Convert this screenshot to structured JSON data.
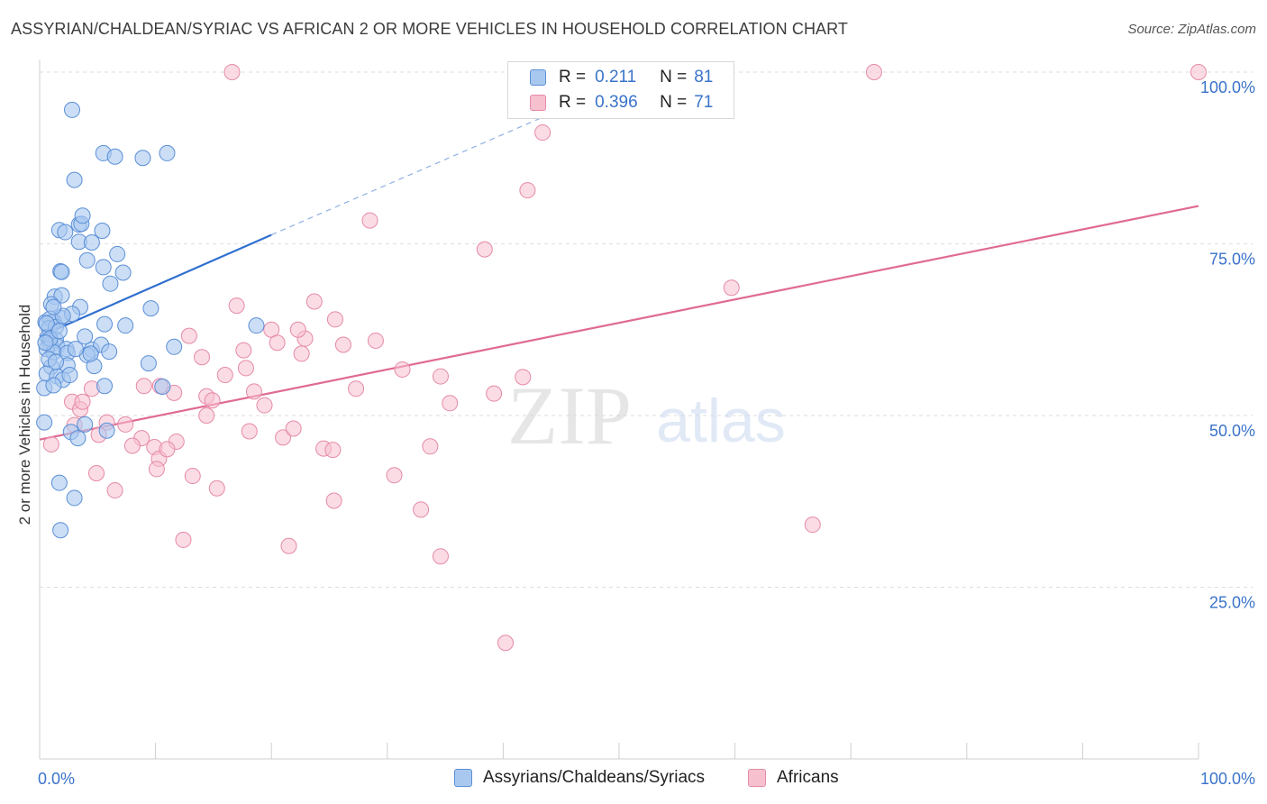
{
  "title": "ASSYRIAN/CHALDEAN/SYRIAC VS AFRICAN 2 OR MORE VEHICLES IN HOUSEHOLD CORRELATION CHART",
  "source": "Source: ZipAtlas.com",
  "watermark": {
    "zip": "ZIP",
    "atlas": "atlas"
  },
  "legend": {
    "r_label": "R =",
    "n_label": "N =",
    "series": [
      {
        "r": "0.211",
        "n": "81"
      },
      {
        "r": "0.396",
        "n": "71"
      }
    ]
  },
  "bottom_legend": [
    "Assyrians/Chaldeans/Syriacs",
    "Africans"
  ],
  "colors": {
    "blue_fill": "#a9c8f0",
    "blue_stroke": "#5b8fd6",
    "blue_line": "#2f6fcf",
    "pink_fill": "#f7c0cf",
    "pink_stroke": "#e58aa6",
    "pink_line": "#e06a93",
    "tick_label": "#3a73c9",
    "grid": "#dedede"
  },
  "chart_data": {
    "type": "scatter",
    "title": "ASSYRIAN/CHALDEAN/SYRIAC VS AFRICAN 2 OR MORE VEHICLES IN HOUSEHOLD CORRELATION CHART",
    "xlabel": "",
    "ylabel": "2 or more Vehicles in Household",
    "xlim": [
      0,
      100
    ],
    "ylim": [
      0,
      100
    ],
    "x_tick_labels": [
      "0.0%",
      "100.0%"
    ],
    "y_ticks": [
      25,
      50,
      75,
      100
    ],
    "y_tick_labels": [
      "25.0%",
      "50.0%",
      "75.0%",
      "100.0%"
    ],
    "series": [
      {
        "name": "Assyrians/Chaldeans/Syriacs",
        "color": "#5b8fd6",
        "points": [
          [
            2.8,
            94.5
          ],
          [
            3.0,
            84.3
          ],
          [
            5.5,
            88.2
          ],
          [
            6.5,
            87.7
          ],
          [
            8.9,
            87.5
          ],
          [
            11.0,
            88.2
          ],
          [
            1.7,
            77.0
          ],
          [
            2.2,
            76.7
          ],
          [
            3.4,
            77.8
          ],
          [
            3.6,
            77.9
          ],
          [
            3.7,
            79.1
          ],
          [
            5.4,
            76.9
          ],
          [
            3.4,
            75.3
          ],
          [
            4.5,
            75.2
          ],
          [
            4.1,
            72.6
          ],
          [
            6.7,
            73.5
          ],
          [
            5.5,
            71.6
          ],
          [
            7.2,
            70.8
          ],
          [
            1.8,
            71.0
          ],
          [
            1.9,
            70.9
          ],
          [
            6.1,
            69.2
          ],
          [
            1.3,
            67.3
          ],
          [
            1.9,
            67.5
          ],
          [
            1.0,
            66.2
          ],
          [
            3.5,
            65.8
          ],
          [
            1.8,
            64.2
          ],
          [
            1.2,
            63.7
          ],
          [
            0.5,
            63.6
          ],
          [
            0.9,
            64.1
          ],
          [
            2.8,
            64.8
          ],
          [
            9.6,
            65.6
          ],
          [
            0.8,
            62.7
          ],
          [
            1.4,
            62.9
          ],
          [
            5.6,
            63.3
          ],
          [
            7.4,
            63.1
          ],
          [
            18.7,
            63.1
          ],
          [
            0.7,
            61.4
          ],
          [
            0.9,
            60.9
          ],
          [
            1.4,
            61.0
          ],
          [
            0.9,
            60.3
          ],
          [
            1.5,
            60.1
          ],
          [
            2.3,
            59.7
          ],
          [
            4.5,
            59.6
          ],
          [
            5.3,
            60.3
          ],
          [
            11.6,
            60.0
          ],
          [
            0.6,
            59.7
          ],
          [
            1.2,
            59.2
          ],
          [
            2.4,
            59.1
          ],
          [
            4.1,
            58.8
          ],
          [
            6.0,
            59.3
          ],
          [
            1.0,
            57.1
          ],
          [
            2.4,
            57.3
          ],
          [
            4.7,
            57.2
          ],
          [
            9.4,
            57.6
          ],
          [
            0.6,
            56.1
          ],
          [
            1.5,
            55.7
          ],
          [
            2.0,
            55.2
          ],
          [
            0.4,
            54.0
          ],
          [
            1.2,
            54.4
          ],
          [
            5.6,
            54.3
          ],
          [
            10.6,
            54.2
          ],
          [
            0.4,
            49.0
          ],
          [
            3.9,
            48.7
          ],
          [
            2.7,
            47.6
          ],
          [
            3.3,
            46.7
          ],
          [
            5.8,
            47.8
          ],
          [
            1.7,
            40.2
          ],
          [
            3.0,
            38.0
          ],
          [
            1.8,
            33.3
          ],
          [
            0.9,
            61.2
          ],
          [
            2.0,
            64.5
          ],
          [
            1.2,
            65.8
          ],
          [
            3.1,
            59.7
          ],
          [
            0.6,
            63.4
          ],
          [
            1.7,
            62.3
          ],
          [
            4.4,
            59.0
          ],
          [
            0.8,
            58.2
          ],
          [
            2.6,
            55.9
          ],
          [
            1.4,
            57.8
          ],
          [
            3.9,
            61.5
          ],
          [
            0.5,
            60.6
          ]
        ],
        "trend_solid": {
          "x": [
            0,
            20
          ],
          "y": [
            61.5,
            76.3
          ]
        },
        "trend_dashed": {
          "x": [
            20,
            45
          ],
          "y": [
            76.3,
            94.6
          ]
        }
      },
      {
        "name": "Africans",
        "color": "#e58aa6",
        "points": [
          [
            16.6,
            100.0
          ],
          [
            72.0,
            100.0
          ],
          [
            100.0,
            100.0
          ],
          [
            43.4,
            91.2
          ],
          [
            42.1,
            82.8
          ],
          [
            28.5,
            78.4
          ],
          [
            38.4,
            74.2
          ],
          [
            59.7,
            68.6
          ],
          [
            17.0,
            66.0
          ],
          [
            23.7,
            66.6
          ],
          [
            25.5,
            64.0
          ],
          [
            20.0,
            62.5
          ],
          [
            12.9,
            61.6
          ],
          [
            22.9,
            61.2
          ],
          [
            20.5,
            60.6
          ],
          [
            29.0,
            60.9
          ],
          [
            17.6,
            59.5
          ],
          [
            14.0,
            58.5
          ],
          [
            22.6,
            59.0
          ],
          [
            17.8,
            56.9
          ],
          [
            31.3,
            56.7
          ],
          [
            34.6,
            55.7
          ],
          [
            41.7,
            55.6
          ],
          [
            16.0,
            55.9
          ],
          [
            9.0,
            54.3
          ],
          [
            10.4,
            54.3
          ],
          [
            2.8,
            52.0
          ],
          [
            4.5,
            53.9
          ],
          [
            11.6,
            53.3
          ],
          [
            14.4,
            52.8
          ],
          [
            14.9,
            52.2
          ],
          [
            19.4,
            51.5
          ],
          [
            35.4,
            51.8
          ],
          [
            39.2,
            53.2
          ],
          [
            3.5,
            50.9
          ],
          [
            5.8,
            49.0
          ],
          [
            3.0,
            48.6
          ],
          [
            7.4,
            48.7
          ],
          [
            18.1,
            47.7
          ],
          [
            21.0,
            46.8
          ],
          [
            21.9,
            48.1
          ],
          [
            8.8,
            46.7
          ],
          [
            11.8,
            46.2
          ],
          [
            8.0,
            45.6
          ],
          [
            9.9,
            45.4
          ],
          [
            24.5,
            45.2
          ],
          [
            25.3,
            45.0
          ],
          [
            33.7,
            45.5
          ],
          [
            10.3,
            43.7
          ],
          [
            4.9,
            41.6
          ],
          [
            10.1,
            42.2
          ],
          [
            13.2,
            41.2
          ],
          [
            30.6,
            41.3
          ],
          [
            6.5,
            39.1
          ],
          [
            15.3,
            39.4
          ],
          [
            25.4,
            37.6
          ],
          [
            32.9,
            36.3
          ],
          [
            66.7,
            34.1
          ],
          [
            12.4,
            31.9
          ],
          [
            21.5,
            31.0
          ],
          [
            34.6,
            29.5
          ],
          [
            40.2,
            16.9
          ],
          [
            1.0,
            45.8
          ],
          [
            3.7,
            52.0
          ],
          [
            5.1,
            47.2
          ],
          [
            14.4,
            50.0
          ],
          [
            27.3,
            53.9
          ],
          [
            22.3,
            62.5
          ],
          [
            26.2,
            60.3
          ],
          [
            11.0,
            45.1
          ],
          [
            18.5,
            53.5
          ]
        ],
        "trend_solid": {
          "x": [
            0,
            100
          ],
          "y": [
            46.5,
            80.5
          ]
        }
      }
    ]
  }
}
